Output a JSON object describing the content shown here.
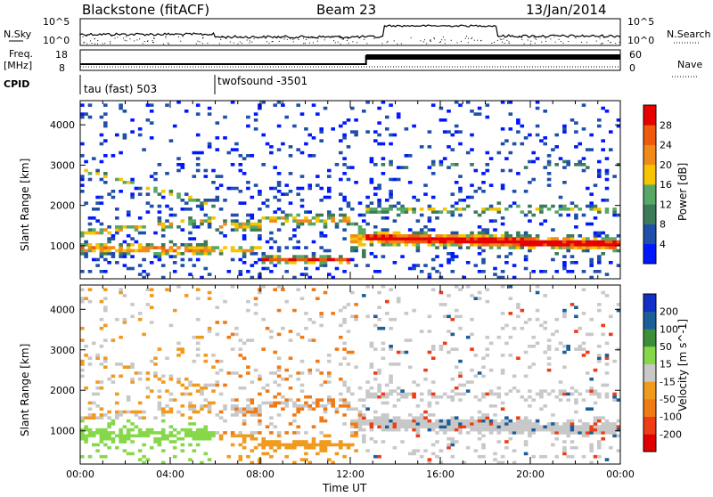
{
  "header": {
    "radar": "Blackstone (fitACF)",
    "beam": "Beam 23",
    "date": "13/Jan/2014"
  },
  "top_panels": {
    "nsky_label": "N.Sky",
    "nsearch_label": "N.Search",
    "freq_label_1": "Freq.",
    "freq_label_2": "[MHz]",
    "nave_label": "Nave",
    "cpid_label": "CPID",
    "left_ticks_noise": [
      "10^5",
      "10^0"
    ],
    "right_ticks_noise": [
      "10^5",
      "10^0"
    ],
    "left_ticks_freq": [
      "18",
      "8"
    ],
    "right_ticks_nave": [
      "60",
      "0"
    ],
    "cpid_segments": [
      "tau (fast) 503",
      "twofsound -3501"
    ]
  },
  "colors": {
    "power_scale": [
      "#0018ff",
      "#1f4fa8",
      "#3d7a5a",
      "#58a865",
      "#f6c400",
      "#f08a18",
      "#f05a0c",
      "#e60000"
    ],
    "velocity_scale": [
      "#1230c8",
      "#1c5e98",
      "#3c8f38",
      "#86d84a",
      "#c8c8c8",
      "#f09a1e",
      "#f07a14",
      "#ee3c14",
      "#e00000"
    ]
  },
  "chart_data": [
    {
      "type": "heatmap",
      "title": "",
      "xlabel": "Time UT",
      "ylabel": "Slant Range [km]",
      "x_ticks": [
        "00:00",
        "04:00",
        "08:00",
        "12:00",
        "16:00",
        "20:00",
        "00:00"
      ],
      "y_ticks": [
        "1000",
        "2000",
        "3000",
        "4000"
      ],
      "xlim_hours": [
        0,
        24
      ],
      "ylim_km": [
        180,
        4600
      ],
      "colorbar_label": "Power [dB]",
      "colorbar_ticks": [
        "4",
        "8",
        "12",
        "16",
        "20",
        "24",
        "28"
      ],
      "colorbar_range": [
        0,
        30
      ]
    },
    {
      "type": "heatmap",
      "title": "",
      "xlabel": "Time UT",
      "ylabel": "Slant Range [km]",
      "x_ticks": [
        "00:00",
        "04:00",
        "08:00",
        "12:00",
        "16:00",
        "20:00",
        "00:00"
      ],
      "y_ticks": [
        "1000",
        "2000",
        "3000",
        "4000"
      ],
      "xlim_hours": [
        0,
        24
      ],
      "ylim_km": [
        180,
        4600
      ],
      "colorbar_label": "Velocity [m s^-1]",
      "colorbar_ticks": [
        "200",
        "100",
        "50",
        "15",
        "-15",
        "-50",
        "-100",
        "-200"
      ]
    }
  ]
}
